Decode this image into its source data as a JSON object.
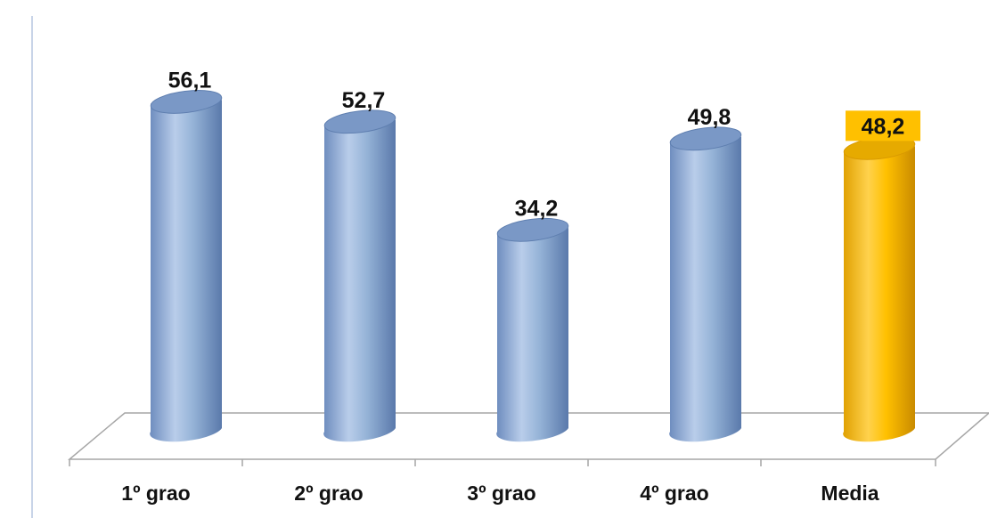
{
  "chart_data": {
    "type": "bar",
    "categories": [
      "1º grao",
      "2º grao",
      "3º grao",
      "4º grao",
      "Media"
    ],
    "values": [
      56.1,
      52.7,
      34.2,
      49.8,
      48.2
    ],
    "value_labels": [
      "56,1",
      "52,7",
      "34,2",
      "49,8",
      "48,2"
    ],
    "highlight_index": 4,
    "colors": {
      "bar": "#95b3d7",
      "bar_dark": "#5f7fb0",
      "highlight": "#ffc000",
      "highlight_dark": "#d99a00",
      "label_highlight_bg": "#ffc000"
    },
    "title": "",
    "xlabel": "",
    "ylabel": "",
    "ylim": [
      0,
      60
    ],
    "grid": false,
    "legend": "none"
  }
}
